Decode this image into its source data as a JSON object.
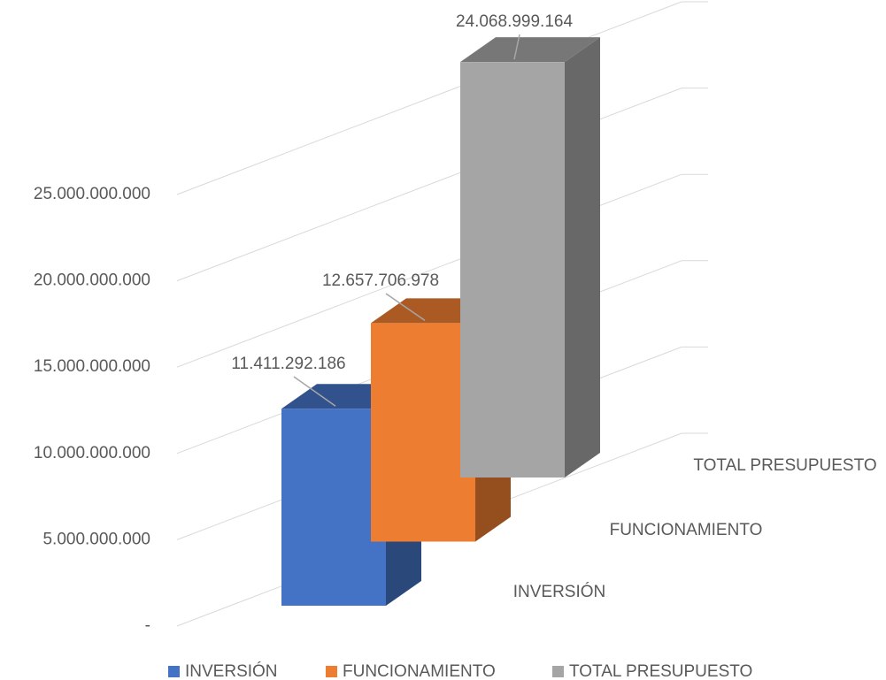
{
  "chart_data": {
    "type": "bar3d",
    "categories": [
      "INVERSIÓN",
      "FUNCIONAMIENTO",
      "TOTAL PRESUPUESTO"
    ],
    "values": [
      11411292186,
      12657706978,
      24068999164
    ],
    "value_labels": [
      "11.411.292.186",
      "12.657.706.978",
      "24.068.999.164"
    ],
    "colors": [
      "#4472c4",
      "#ed7d31",
      "#a5a5a5"
    ],
    "ylim": [
      0,
      25000000000
    ],
    "yticks": [
      {
        "value": 0,
        "label": "-"
      },
      {
        "value": 5000000000,
        "label": "5.000.000.000"
      },
      {
        "value": 10000000000,
        "label": "10.000.000.000"
      },
      {
        "value": 15000000000,
        "label": "15.000.000.000"
      },
      {
        "value": 20000000000,
        "label": "20.000.000.000"
      },
      {
        "value": 25000000000,
        "label": "25.000.000.000"
      }
    ],
    "grid": true,
    "legend": "bottom"
  }
}
